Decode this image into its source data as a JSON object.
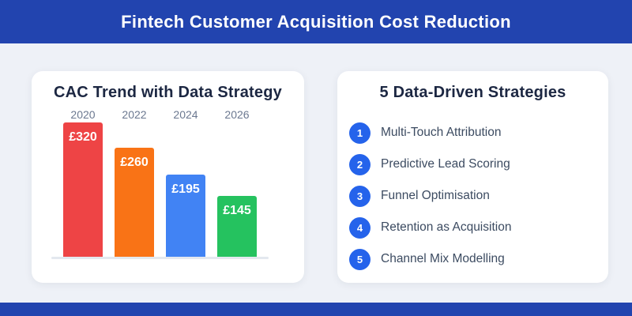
{
  "header": {
    "title": "Fintech Customer Acquisition Cost Reduction"
  },
  "chart_data": {
    "type": "bar",
    "title": "CAC Trend with Data Strategy",
    "categories": [
      "2020",
      "2022",
      "2024",
      "2026"
    ],
    "values": [
      320,
      260,
      195,
      145
    ],
    "value_labels": [
      "£320",
      "£260",
      "£195",
      "£145"
    ],
    "xlabel": "",
    "ylabel": "",
    "ylim": [
      0,
      340
    ],
    "grid": false,
    "legend": false,
    "bar_colors": [
      "#ee4445",
      "#f97316",
      "#4183f4",
      "#25c25f"
    ]
  },
  "strategies": {
    "title": "5 Data-Driven Strategies",
    "items": [
      {
        "number": "1",
        "label": "Multi-Touch Attribution"
      },
      {
        "number": "2",
        "label": "Predictive Lead Scoring"
      },
      {
        "number": "3",
        "label": "Funnel Optimisation"
      },
      {
        "number": "4",
        "label": "Retention as Acquisition"
      },
      {
        "number": "5",
        "label": "Channel Mix Modelling"
      }
    ]
  },
  "colors": {
    "header_bar": "#2244af",
    "footer_bar": "#2244af",
    "page_background": "#eef1f7",
    "card_background": "#ffffff",
    "title_text": "#1c2742",
    "tick_label_text": "#6b7890",
    "bar_value_text": "#ffffff",
    "strategy_text": "#3c4b61",
    "badge_blue": "#2563eb",
    "axis_baseline": "#e3e8ef"
  }
}
